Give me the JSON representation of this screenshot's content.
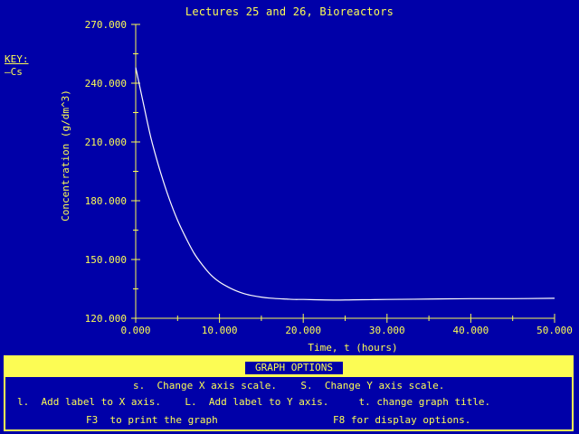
{
  "title": "Lectures 25 and 26, Bioreactors",
  "key": {
    "title": "KEY:",
    "items": [
      {
        "label": "Cs",
        "color": "#fcfcfc"
      }
    ]
  },
  "chart_data": {
    "type": "line",
    "title": "Lectures 25 and 26, Bioreactors",
    "xlabel": "Time, t (hours)",
    "ylabel": "Concentration (g/dm^3)",
    "xlim": [
      0,
      50
    ],
    "ylim": [
      120,
      270
    ],
    "xticks": [
      0,
      10,
      20,
      30,
      40,
      50
    ],
    "yticks": [
      120,
      150,
      180,
      210,
      240,
      270
    ],
    "xtick_labels": [
      "0.000",
      "10.000",
      "20.000",
      "30.000",
      "40.000",
      "50.000"
    ],
    "ytick_labels": [
      "120.000",
      "150.000",
      "180.000",
      "210.000",
      "240.000",
      "270.000"
    ],
    "grid": false,
    "legend_position": "left",
    "series": [
      {
        "name": "Cs",
        "color": "#fcfcfc",
        "x": [
          0,
          0.5,
          1,
          1.5,
          2,
          3,
          4,
          5,
          6,
          7,
          8,
          9,
          10,
          11,
          12,
          13,
          14,
          15,
          16,
          17,
          18,
          19,
          20,
          22,
          24,
          26,
          28,
          30,
          35,
          40,
          45,
          50
        ],
        "y": [
          248,
          238,
          228,
          218,
          209,
          194,
          181,
          170,
          161,
          153,
          147,
          142,
          138.5,
          136,
          134,
          132.5,
          131.5,
          130.8,
          130.3,
          130,
          129.8,
          129.6,
          129.6,
          129.4,
          129.3,
          129.4,
          129.5,
          129.6,
          129.8,
          130,
          130,
          130.2
        ]
      }
    ]
  },
  "options": {
    "heading": "GRAPH OPTIONS",
    "line1": "s.  Change X axis scale.    S.  Change Y axis scale.",
    "line2": "l.  Add label to X axis.    L.  Add label to Y axis.     t. change graph title.",
    "line3_left": "F3  to print the graph",
    "line3_right": "F8 for display options."
  },
  "colors": {
    "background": "#0000a8",
    "foreground": "#fcfc54",
    "curve": "#fcfcfc"
  }
}
